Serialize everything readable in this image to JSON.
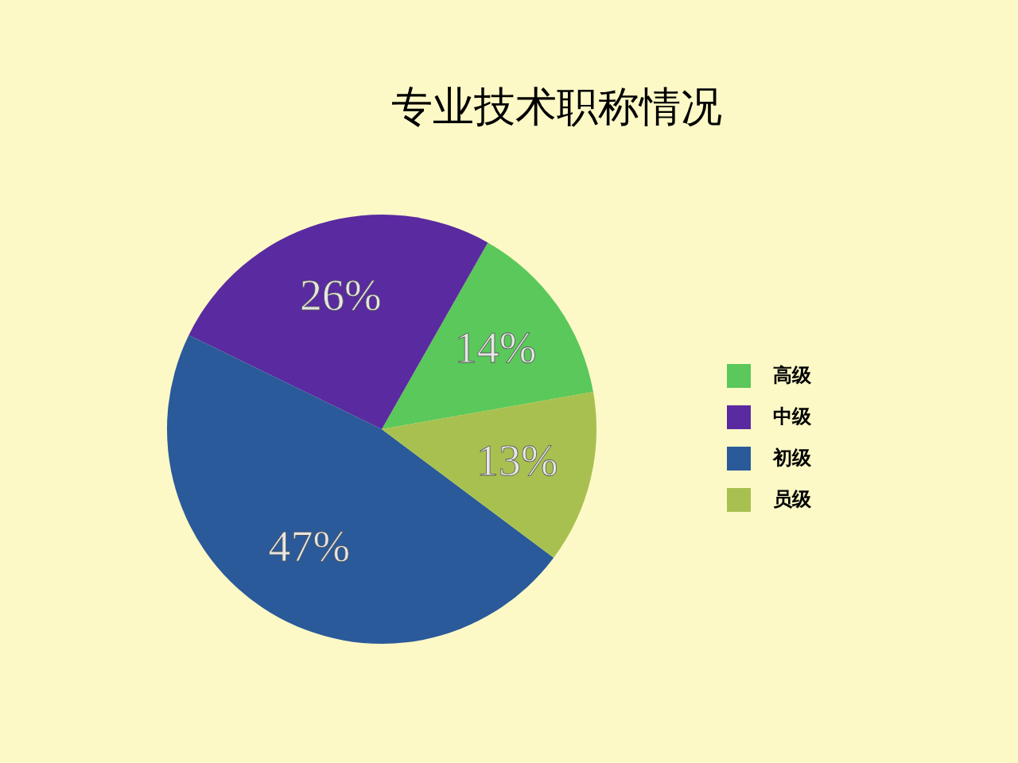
{
  "chart_data": {
    "type": "pie",
    "title": "专业技术职称情况",
    "categories": [
      "高级",
      "中级",
      "初级",
      "员级"
    ],
    "values": [
      14,
      26,
      47,
      13
    ],
    "value_labels": [
      "14%",
      "26%",
      "47%",
      "13%"
    ],
    "colors": [
      "#5ac85a",
      "#5a2aa0",
      "#2a5a9a",
      "#a8c050"
    ],
    "legend": "right"
  }
}
